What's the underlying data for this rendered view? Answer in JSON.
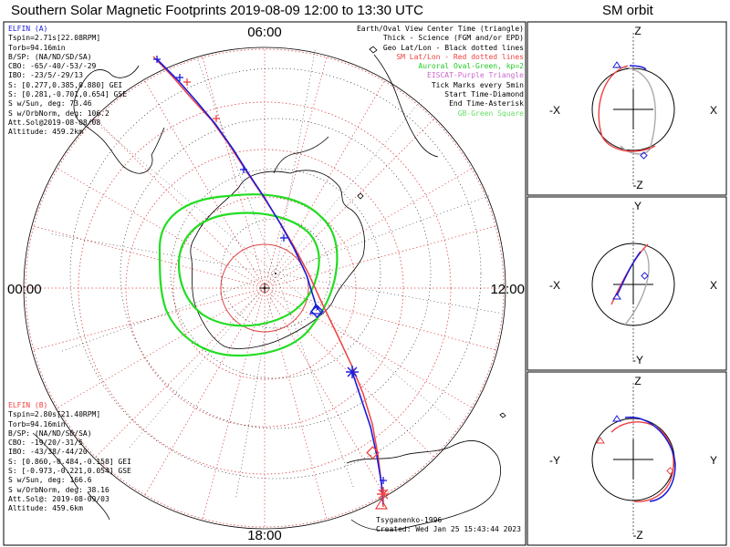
{
  "title": "Southern Solar Magnetic Footprints 2019-08-09 12:00 to 13:30 UTC",
  "orbit_title": "SM orbit",
  "colors": {
    "a_track": "#1a1adc",
    "b_track": "#f04040",
    "oval": "#22dd22",
    "grid": "#dd4444",
    "land": "#000000"
  },
  "elfin_a": {
    "name": "ELFIN (A)",
    "lines": [
      "Tspin=2.71s[22.08RPM]",
      "Torb=94.16min",
      "B/SP: (NA/ND/SD/SA)",
      "CBO: -65/-40/-53/-29",
      "IBO: -23/5/-29/13",
      "S: [0.277,0.385,0.880] GEI",
      "S: [0.281,-0.701,0.654] GSE",
      "S w/Sun, deg: 73.46",
      "S w/OrbNorm, deg: 106.2",
      "Att.Sol@2019-08-08/08",
      "Altitude: 459.2km"
    ]
  },
  "elfin_b": {
    "name": "ELFIN (B)",
    "lines": [
      "Tspin=2.80s[21.40RPM]",
      "Torb=94.16min",
      "B/SP: (NA/ND/SD/SA)",
      "CBO: -19/20/-31/5",
      "IBO: -43/38/-44/20",
      "S: [0.860,-0.484,-0.158] GEI",
      "S: [-0.973,-0.221,0.054] GSE",
      "S w/Sun, deg: 166.6",
      "S w/OrbNorm, deg: 38.16",
      "Att.Sol@: 2019-08-09/03",
      "Altitude: 459.6km"
    ]
  },
  "legend": [
    {
      "text": "Earth/Oval View Center Time (triangle)",
      "color": "#000000"
    },
    {
      "text": "Thick - Science (FGM and/or EPD)",
      "color": "#000000"
    },
    {
      "text": "Geo Lat/Lon - Black dotted lines",
      "color": "#000000"
    },
    {
      "text": "SM Lat/Lon - Red dotted lines",
      "color": "#ee2020"
    },
    {
      "text": "Auroral Oval-Green, kp=2",
      "color": "#22cc22"
    },
    {
      "text": "EISCAT-Purple Triangle",
      "color": "#cc66cc"
    },
    {
      "text": "Tick Marks every 5min",
      "color": "#000000"
    },
    {
      "text": "Start Time-Diamond",
      "color": "#000000"
    },
    {
      "text": "End Time-Asterisk",
      "color": "#000000"
    },
    {
      "text": "GB-Green Square",
      "color": "#66dd66"
    }
  ],
  "footer": {
    "model": "Tsyganenko-1996",
    "created": "Created: Wed Jan 25 15:43:44 2023"
  },
  "chart_data": [
    {
      "type": "polar-map",
      "title": "Southern Solar Magnetic Footprints 2019-08-09 12:00 to 13:30 UTC",
      "mlt_labels": {
        "top": "06:00",
        "left": "00:00",
        "right": "12:00",
        "bottom": "18:00"
      },
      "sm_latitude_circles_deg": [
        -80,
        -70,
        -60,
        -50,
        -40
      ],
      "auroral_oval_kp": 2
    },
    {
      "type": "line",
      "title": "SM orbit",
      "panels": [
        {
          "name": "xz",
          "top": "Z",
          "bottom": "-Z",
          "left": "-X",
          "right": "X"
        },
        {
          "name": "xy",
          "top": "Y",
          "bottom": "-Y",
          "left": "-X",
          "right": "X"
        },
        {
          "name": "yz",
          "top": "Z",
          "bottom": "-Z",
          "left": "-Y",
          "right": "Y"
        }
      ]
    }
  ]
}
